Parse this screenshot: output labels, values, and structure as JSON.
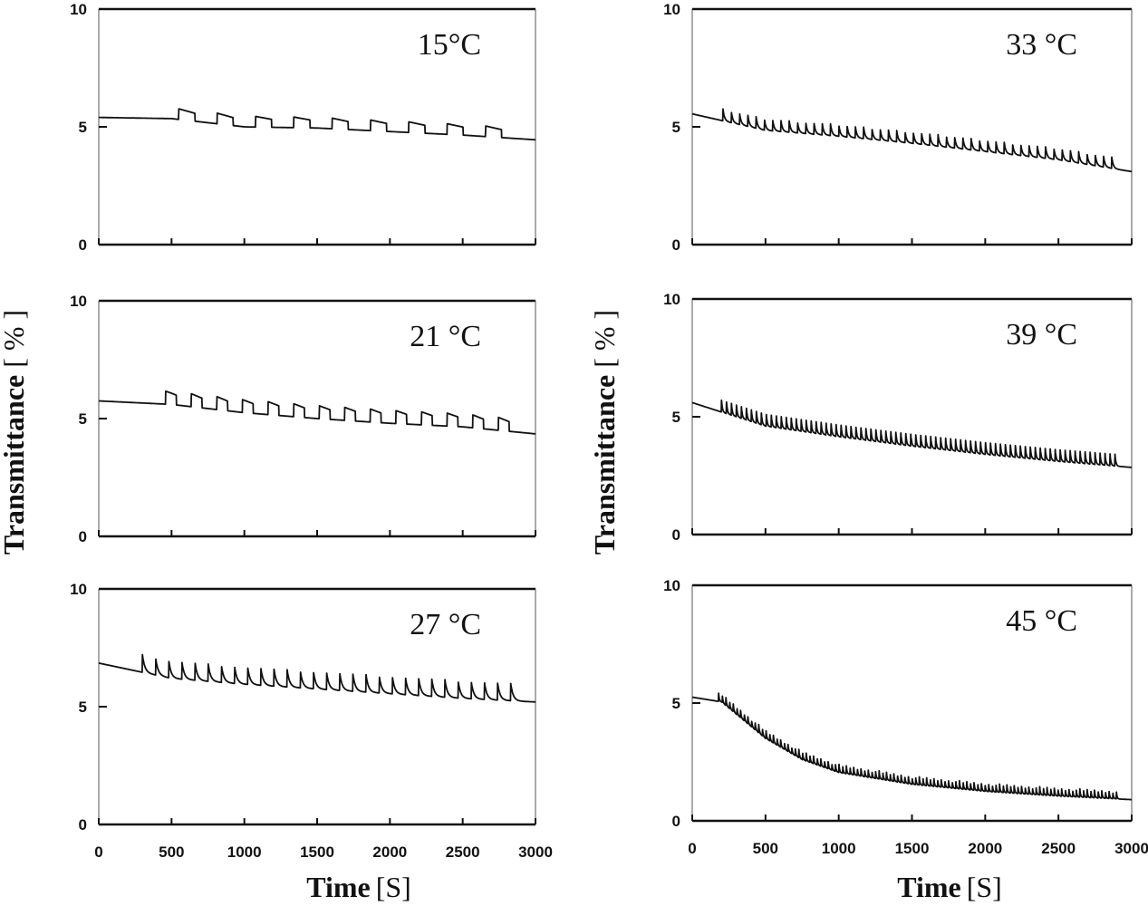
{
  "figure": {
    "ylabel": "Transmittance",
    "ylabel_unit": "[ % ]",
    "xlabel": "Time",
    "xlabel_unit": "[S]"
  },
  "chart_data": [
    {
      "type": "line",
      "title": "15°C",
      "xlabel": "Time [S]",
      "ylabel": "Transmittance [ % ]",
      "xlim": [
        0,
        3000
      ],
      "ylim": [
        0,
        10
      ],
      "yticks": [
        0,
        5,
        10
      ],
      "xticks": [
        0,
        500,
        1000,
        1500,
        2000,
        2500,
        3000
      ],
      "pulse_start_s": 550,
      "pulse_count": 9,
      "pulse_height": 0.45,
      "pulse_shape": "square",
      "series": [
        {
          "name": "15°C",
          "x": [
            0,
            500,
            1000,
            1500,
            2000,
            2500,
            3000
          ],
          "y": [
            5.4,
            5.35,
            5.0,
            4.95,
            4.8,
            4.65,
            4.45
          ]
        }
      ]
    },
    {
      "type": "line",
      "title": "21 °C",
      "xlabel": "Time [S]",
      "ylabel": "Transmittance [ % ]",
      "xlim": [
        0,
        3000
      ],
      "ylim": [
        0,
        10
      ],
      "yticks": [
        0,
        5,
        10
      ],
      "xticks": [
        0,
        500,
        1000,
        1500,
        2000,
        2500,
        3000
      ],
      "pulse_start_s": 460,
      "pulse_count": 14,
      "pulse_height": 0.55,
      "pulse_shape": "square",
      "series": [
        {
          "name": "21 °C",
          "x": [
            0,
            500,
            1000,
            1500,
            2000,
            2500,
            3000
          ],
          "y": [
            5.75,
            5.6,
            5.25,
            5.0,
            4.8,
            4.65,
            4.35
          ]
        }
      ]
    },
    {
      "type": "line",
      "title": "27 °C",
      "xlabel": "Time [S]",
      "ylabel": "Transmittance [ % ]",
      "xlim": [
        0,
        3000
      ],
      "ylim": [
        0,
        10
      ],
      "yticks": [
        0,
        5,
        10
      ],
      "xticks": [
        0,
        500,
        1000,
        1500,
        2000,
        2500,
        3000
      ],
      "pulse_start_s": 300,
      "pulse_count": 29,
      "pulse_height": 0.75,
      "pulse_shape": "spike",
      "series": [
        {
          "name": "27 °C",
          "x": [
            0,
            500,
            1000,
            1500,
            2000,
            2500,
            3000
          ],
          "y": [
            6.85,
            6.2,
            5.95,
            5.75,
            5.55,
            5.35,
            5.2
          ]
        }
      ]
    },
    {
      "type": "line",
      "title": "33 °C",
      "xlabel": "Time [S]",
      "ylabel": "Transmittance [ % ]",
      "xlim": [
        0,
        3000
      ],
      "ylim": [
        0,
        10
      ],
      "yticks": [
        0,
        5,
        10
      ],
      "xticks": [
        0,
        500,
        1000,
        1500,
        2000,
        2500,
        3000
      ],
      "pulse_start_s": 210,
      "pulse_count": 48,
      "pulse_height": 0.5,
      "pulse_shape": "spike",
      "series": [
        {
          "name": "33 °C",
          "x": [
            0,
            500,
            1000,
            1500,
            2000,
            2500,
            3000
          ],
          "y": [
            5.55,
            4.85,
            4.6,
            4.3,
            3.95,
            3.6,
            3.1
          ]
        }
      ]
    },
    {
      "type": "line",
      "title": "39 °C",
      "xlabel": "Time [S]",
      "ylabel": "Transmittance [ % ]",
      "xlim": [
        0,
        3000
      ],
      "ylim": [
        0,
        10
      ],
      "yticks": [
        0,
        5,
        10
      ],
      "xticks": [
        0,
        500,
        1000,
        1500,
        2000,
        2500,
        3000
      ],
      "pulse_start_s": 200,
      "pulse_count": 80,
      "pulse_height": 0.5,
      "pulse_shape": "spike",
      "series": [
        {
          "name": "39 °C",
          "x": [
            0,
            500,
            1000,
            1500,
            2000,
            2500,
            3000
          ],
          "y": [
            5.6,
            4.6,
            4.15,
            3.75,
            3.4,
            3.1,
            2.85
          ]
        }
      ]
    },
    {
      "type": "line",
      "title": "45 °C",
      "xlabel": "Time [S]",
      "ylabel": "Transmittance [ % ]",
      "xlim": [
        0,
        3000
      ],
      "ylim": [
        0,
        10
      ],
      "yticks": [
        0,
        5,
        10
      ],
      "xticks": [
        0,
        500,
        1000,
        1500,
        2000,
        2500,
        3000
      ],
      "pulse_start_s": 180,
      "pulse_count": 110,
      "pulse_height": 0.35,
      "pulse_shape": "spike",
      "series": [
        {
          "name": "45 °C",
          "x": [
            0,
            200,
            500,
            750,
            1000,
            1500,
            2000,
            2500,
            3000
          ],
          "y": [
            5.25,
            5.05,
            3.5,
            2.6,
            2.05,
            1.55,
            1.25,
            1.05,
            0.9
          ]
        }
      ]
    }
  ]
}
